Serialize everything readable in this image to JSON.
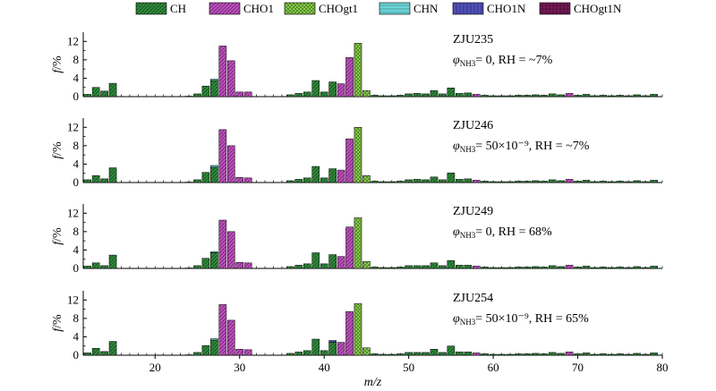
{
  "chart_data": {
    "type": "bar",
    "stacked": true,
    "xlabel": "m/z",
    "ylabel": "f/%",
    "xlim": [
      11.5,
      80
    ],
    "ylim": [
      0,
      14
    ],
    "xticks": [
      20,
      30,
      40,
      50,
      60,
      70,
      80
    ],
    "yticks": [
      0,
      4,
      8,
      12
    ],
    "legend_position": "top",
    "legend": [
      {
        "name": "CH",
        "color": "#2e8b3a",
        "pattern": "diag"
      },
      {
        "name": "CHO1",
        "color": "#c04fc0",
        "pattern": "diag"
      },
      {
        "name": "CHOgt1",
        "color": "#8ad44a",
        "pattern": "cross"
      },
      {
        "name": "CHN",
        "color": "#6fd3d6",
        "pattern": "horiz"
      },
      {
        "name": "CHO1N",
        "color": "#5050b8",
        "pattern": "vert"
      },
      {
        "name": "CHOgt1N",
        "color": "#7a1a5a",
        "pattern": "grid"
      }
    ],
    "panels": [
      {
        "id": "ZJU235",
        "condition": "0, RH = ~7%",
        "stacks": [
          {
            "x": 12,
            "CH": 0.5
          },
          {
            "x": 13,
            "CH": 2.0
          },
          {
            "x": 14,
            "CH": 1.2
          },
          {
            "x": 15,
            "CH": 2.9
          },
          {
            "x": 24,
            "CH": 0.1
          },
          {
            "x": 25,
            "CH": 0.6
          },
          {
            "x": 26,
            "CH": 2.3
          },
          {
            "x": 27,
            "CH": 3.5,
            "CHN": 0.3
          },
          {
            "x": 28,
            "CHO1": 11.0
          },
          {
            "x": 29,
            "CHO1": 7.8
          },
          {
            "x": 30,
            "CHO1": 1.0
          },
          {
            "x": 31,
            "CHO1": 1.0
          },
          {
            "x": 36,
            "CH": 0.4
          },
          {
            "x": 37,
            "CH": 0.7
          },
          {
            "x": 38,
            "CH": 1.0
          },
          {
            "x": 39,
            "CH": 3.5
          },
          {
            "x": 40,
            "CH": 1.0
          },
          {
            "x": 41,
            "CH": 3.2
          },
          {
            "x": 42,
            "CHO1": 2.8
          },
          {
            "x": 43,
            "CHO1": 8.5
          },
          {
            "x": 44,
            "CHOgt1": 11.6
          },
          {
            "x": 45,
            "CHOgt1": 1.3
          },
          {
            "x": 46,
            "CH": 0.3
          },
          {
            "x": 47,
            "CH": 0.2
          },
          {
            "x": 48,
            "CH": 0.2
          },
          {
            "x": 49,
            "CH": 0.3
          },
          {
            "x": 50,
            "CH": 0.6
          },
          {
            "x": 51,
            "CH": 0.7
          },
          {
            "x": 52,
            "CH": 0.6
          },
          {
            "x": 53,
            "CH": 1.3
          },
          {
            "x": 54,
            "CH": 0.6
          },
          {
            "x": 55,
            "CH": 1.9
          },
          {
            "x": 56,
            "CH": 0.7
          },
          {
            "x": 57,
            "CH": 0.8
          },
          {
            "x": 58,
            "CHO1": 0.5
          },
          {
            "x": 59,
            "CH": 0.3
          },
          {
            "x": 60,
            "CH": 0.2
          },
          {
            "x": 61,
            "CH": 0.2
          },
          {
            "x": 62,
            "CH": 0.2
          },
          {
            "x": 63,
            "CH": 0.3
          },
          {
            "x": 64,
            "CH": 0.3
          },
          {
            "x": 65,
            "CH": 0.4
          },
          {
            "x": 66,
            "CH": 0.3
          },
          {
            "x": 67,
            "CH": 0.6
          },
          {
            "x": 68,
            "CH": 0.4
          },
          {
            "x": 69,
            "CHO1": 0.7
          },
          {
            "x": 70,
            "CH": 0.3
          },
          {
            "x": 71,
            "CH": 0.5
          },
          {
            "x": 72,
            "CH": 0.2
          },
          {
            "x": 73,
            "CH": 0.3
          },
          {
            "x": 74,
            "CH": 0.2
          },
          {
            "x": 75,
            "CH": 0.3
          },
          {
            "x": 76,
            "CH": 0.2
          },
          {
            "x": 77,
            "CH": 0.4
          },
          {
            "x": 78,
            "CH": 0.2
          },
          {
            "x": 79,
            "CH": 0.5
          }
        ]
      },
      {
        "id": "ZJU246",
        "condition": "50×10⁻⁹, RH = ~7%",
        "stacks": [
          {
            "x": 12,
            "CH": 0.6
          },
          {
            "x": 13,
            "CH": 1.5
          },
          {
            "x": 14,
            "CH": 0.8
          },
          {
            "x": 15,
            "CH": 3.2
          },
          {
            "x": 24,
            "CH": 0.1
          },
          {
            "x": 25,
            "CH": 0.6
          },
          {
            "x": 26,
            "CH": 2.2
          },
          {
            "x": 27,
            "CH": 3.3,
            "CHN": 0.4
          },
          {
            "x": 28,
            "CHO1": 11.5
          },
          {
            "x": 29,
            "CHO1": 8.0
          },
          {
            "x": 30,
            "CHO1": 1.1
          },
          {
            "x": 31,
            "CHO1": 1.0
          },
          {
            "x": 36,
            "CH": 0.4
          },
          {
            "x": 37,
            "CH": 0.7
          },
          {
            "x": 38,
            "CH": 1.0
          },
          {
            "x": 39,
            "CH": 3.5
          },
          {
            "x": 40,
            "CH": 1.0
          },
          {
            "x": 41,
            "CH": 3.0
          },
          {
            "x": 42,
            "CHO1": 2.7
          },
          {
            "x": 43,
            "CHO1": 9.5
          },
          {
            "x": 44,
            "CHOgt1": 12.0
          },
          {
            "x": 45,
            "CHOgt1": 1.5
          },
          {
            "x": 46,
            "CH": 0.3
          },
          {
            "x": 47,
            "CH": 0.2
          },
          {
            "x": 48,
            "CH": 0.2
          },
          {
            "x": 49,
            "CH": 0.3
          },
          {
            "x": 50,
            "CH": 0.6
          },
          {
            "x": 51,
            "CH": 0.7
          },
          {
            "x": 52,
            "CH": 0.6
          },
          {
            "x": 53,
            "CH": 1.2
          },
          {
            "x": 54,
            "CH": 0.6
          },
          {
            "x": 55,
            "CH": 2.1
          },
          {
            "x": 56,
            "CH": 0.7
          },
          {
            "x": 57,
            "CH": 0.8
          },
          {
            "x": 58,
            "CHO1": 0.5
          },
          {
            "x": 59,
            "CH": 0.3
          },
          {
            "x": 60,
            "CH": 0.2
          },
          {
            "x": 61,
            "CH": 0.2
          },
          {
            "x": 62,
            "CH": 0.2
          },
          {
            "x": 63,
            "CH": 0.3
          },
          {
            "x": 64,
            "CH": 0.3
          },
          {
            "x": 65,
            "CH": 0.4
          },
          {
            "x": 66,
            "CH": 0.3
          },
          {
            "x": 67,
            "CH": 0.6
          },
          {
            "x": 68,
            "CH": 0.4
          },
          {
            "x": 69,
            "CHO1": 0.7
          },
          {
            "x": 70,
            "CH": 0.3
          },
          {
            "x": 71,
            "CH": 0.5
          },
          {
            "x": 72,
            "CH": 0.2
          },
          {
            "x": 73,
            "CH": 0.3
          },
          {
            "x": 74,
            "CH": 0.2
          },
          {
            "x": 75,
            "CH": 0.3
          },
          {
            "x": 76,
            "CH": 0.2
          },
          {
            "x": 77,
            "CH": 0.4
          },
          {
            "x": 78,
            "CH": 0.2
          },
          {
            "x": 79,
            "CH": 0.5
          }
        ]
      },
      {
        "id": "ZJU249",
        "condition": "0, RH = 68%",
        "stacks": [
          {
            "x": 12,
            "CH": 0.5
          },
          {
            "x": 13,
            "CH": 1.2
          },
          {
            "x": 14,
            "CH": 0.6
          },
          {
            "x": 15,
            "CH": 2.9
          },
          {
            "x": 24,
            "CH": 0.1
          },
          {
            "x": 25,
            "CH": 0.6
          },
          {
            "x": 26,
            "CH": 2.2
          },
          {
            "x": 27,
            "CH": 3.4,
            "CHN": 0.2
          },
          {
            "x": 28,
            "CHO1": 10.5
          },
          {
            "x": 29,
            "CHO1": 8.0
          },
          {
            "x": 30,
            "CHO1": 1.3
          },
          {
            "x": 31,
            "CHO1": 1.2
          },
          {
            "x": 36,
            "CH": 0.4
          },
          {
            "x": 37,
            "CH": 0.7
          },
          {
            "x": 38,
            "CH": 1.0
          },
          {
            "x": 39,
            "CH": 3.4
          },
          {
            "x": 40,
            "CH": 1.0
          },
          {
            "x": 41,
            "CH": 3.0
          },
          {
            "x": 42,
            "CHO1": 2.6
          },
          {
            "x": 43,
            "CHO1": 9.0
          },
          {
            "x": 44,
            "CHOgt1": 11.0
          },
          {
            "x": 45,
            "CHOgt1": 1.5
          },
          {
            "x": 46,
            "CH": 0.3
          },
          {
            "x": 47,
            "CH": 0.2
          },
          {
            "x": 48,
            "CH": 0.2
          },
          {
            "x": 49,
            "CH": 0.3
          },
          {
            "x": 50,
            "CH": 0.6
          },
          {
            "x": 51,
            "CH": 0.6
          },
          {
            "x": 52,
            "CH": 0.6
          },
          {
            "x": 53,
            "CH": 1.2
          },
          {
            "x": 54,
            "CH": 0.6
          },
          {
            "x": 55,
            "CH": 1.7
          },
          {
            "x": 56,
            "CH": 0.7
          },
          {
            "x": 57,
            "CH": 0.7
          },
          {
            "x": 58,
            "CHO1": 0.5
          },
          {
            "x": 59,
            "CH": 0.3
          },
          {
            "x": 60,
            "CH": 0.2
          },
          {
            "x": 61,
            "CH": 0.2
          },
          {
            "x": 62,
            "CH": 0.2
          },
          {
            "x": 63,
            "CH": 0.3
          },
          {
            "x": 64,
            "CH": 0.3
          },
          {
            "x": 65,
            "CH": 0.4
          },
          {
            "x": 66,
            "CH": 0.3
          },
          {
            "x": 67,
            "CH": 0.6
          },
          {
            "x": 68,
            "CH": 0.4
          },
          {
            "x": 69,
            "CHO1": 0.7
          },
          {
            "x": 70,
            "CH": 0.3
          },
          {
            "x": 71,
            "CH": 0.5
          },
          {
            "x": 72,
            "CH": 0.2
          },
          {
            "x": 73,
            "CH": 0.3
          },
          {
            "x": 74,
            "CH": 0.2
          },
          {
            "x": 75,
            "CH": 0.3
          },
          {
            "x": 76,
            "CH": 0.2
          },
          {
            "x": 77,
            "CH": 0.4
          },
          {
            "x": 78,
            "CH": 0.2
          },
          {
            "x": 79,
            "CH": 0.5
          }
        ]
      },
      {
        "id": "ZJU254",
        "condition": "50×10⁻⁹, RH = 65%",
        "stacks": [
          {
            "x": 12,
            "CH": 0.5
          },
          {
            "x": 13,
            "CH": 1.5
          },
          {
            "x": 14,
            "CH": 0.8
          },
          {
            "x": 15,
            "CH": 3.0
          },
          {
            "x": 24,
            "CH": 0.1
          },
          {
            "x": 25,
            "CH": 0.6
          },
          {
            "x": 26,
            "CH": 2.1
          },
          {
            "x": 27,
            "CH": 3.3,
            "CHN": 0.3
          },
          {
            "x": 28,
            "CHO1": 11.0
          },
          {
            "x": 29,
            "CHO1": 7.6
          },
          {
            "x": 30,
            "CHO1": 1.3
          },
          {
            "x": 31,
            "CHO1": 1.2
          },
          {
            "x": 36,
            "CH": 0.4
          },
          {
            "x": 37,
            "CH": 0.7
          },
          {
            "x": 38,
            "CH": 1.0
          },
          {
            "x": 39,
            "CH": 3.5
          },
          {
            "x": 40,
            "CH": 1.0
          },
          {
            "x": 41,
            "CH": 2.8,
            "CHO1N": 0.4
          },
          {
            "x": 42,
            "CHO1": 2.8
          },
          {
            "x": 43,
            "CHO1": 9.5
          },
          {
            "x": 44,
            "CHOgt1": 11.2
          },
          {
            "x": 45,
            "CHOgt1": 1.6
          },
          {
            "x": 46,
            "CH": 0.3
          },
          {
            "x": 47,
            "CH": 0.2
          },
          {
            "x": 48,
            "CH": 0.2
          },
          {
            "x": 49,
            "CH": 0.3
          },
          {
            "x": 50,
            "CH": 0.6
          },
          {
            "x": 51,
            "CH": 0.6
          },
          {
            "x": 52,
            "CH": 0.6
          },
          {
            "x": 53,
            "CH": 1.3
          },
          {
            "x": 54,
            "CH": 0.6
          },
          {
            "x": 55,
            "CH": 2.0
          },
          {
            "x": 56,
            "CH": 0.7
          },
          {
            "x": 57,
            "CH": 0.7
          },
          {
            "x": 58,
            "CHO1": 0.5
          },
          {
            "x": 59,
            "CH": 0.3
          },
          {
            "x": 60,
            "CH": 0.2
          },
          {
            "x": 61,
            "CH": 0.2
          },
          {
            "x": 62,
            "CH": 0.2
          },
          {
            "x": 63,
            "CH": 0.3
          },
          {
            "x": 64,
            "CH": 0.3
          },
          {
            "x": 65,
            "CH": 0.4
          },
          {
            "x": 66,
            "CH": 0.3
          },
          {
            "x": 67,
            "CH": 0.6
          },
          {
            "x": 68,
            "CH": 0.4
          },
          {
            "x": 69,
            "CHO1": 0.7
          },
          {
            "x": 70,
            "CH": 0.3
          },
          {
            "x": 71,
            "CH": 0.5
          },
          {
            "x": 72,
            "CH": 0.2
          },
          {
            "x": 73,
            "CH": 0.3
          },
          {
            "x": 74,
            "CH": 0.2
          },
          {
            "x": 75,
            "CH": 0.3
          },
          {
            "x": 76,
            "CH": 0.2
          },
          {
            "x": 77,
            "CH": 0.4
          },
          {
            "x": 78,
            "CH": 0.2
          },
          {
            "x": 79,
            "CH": 0.5
          }
        ]
      }
    ],
    "condition_symbol": "φ",
    "condition_subscript": "NH3",
    "condition_equals": "= "
  }
}
